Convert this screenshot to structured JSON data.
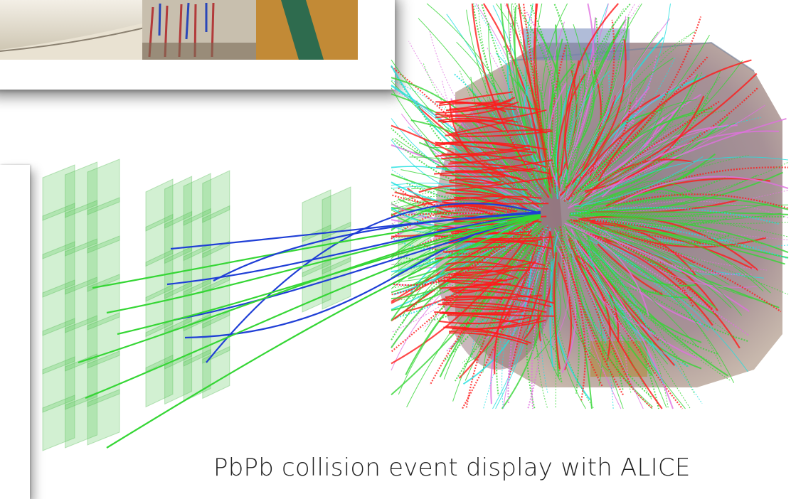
{
  "caption": "PbPb collision event display with ALICE",
  "colors": {
    "green_plates": "#5cc85c",
    "blue_tracks": "#1f3fd6",
    "green_tracks": "#35d635",
    "red_tracks": "#ff1a1a",
    "cyan_tracks": "#1fe0e0",
    "magenta_tracks": "#e070e0",
    "detector_body": "#8b6f7a"
  },
  "images": {
    "top_photo": "photo of detector hardware with cables",
    "event_display": "ALICE PbPb collision event display"
  }
}
